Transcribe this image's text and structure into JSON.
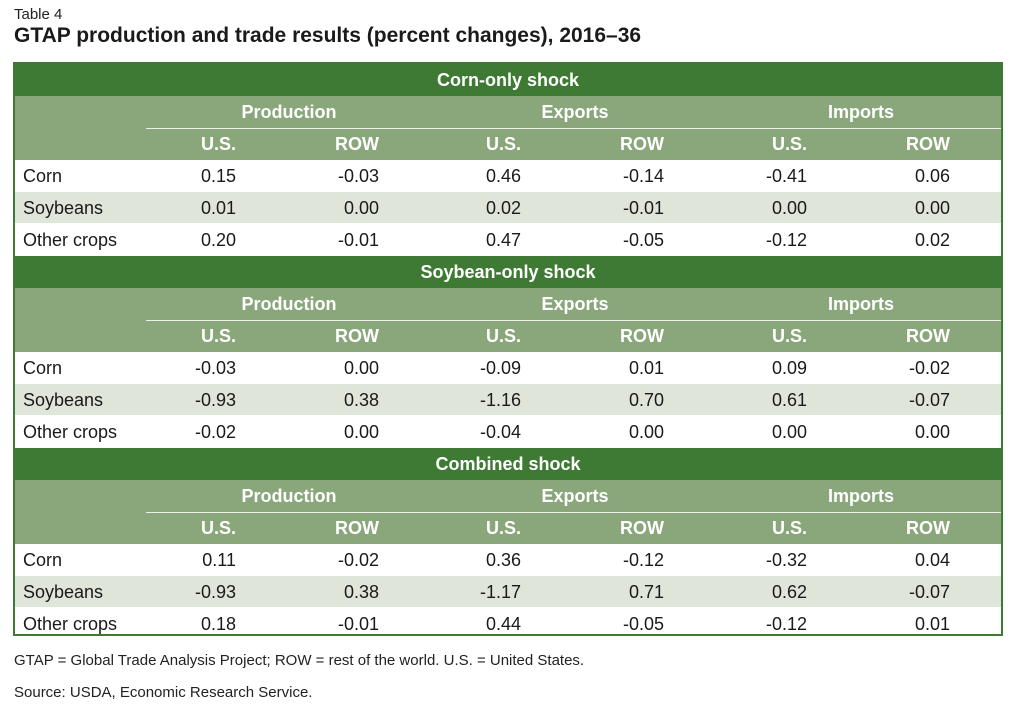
{
  "header": {
    "label": "Table 4",
    "title": "GTAP production and trade results (percent changes), 2016–36"
  },
  "column_groups": [
    "Production",
    "Exports",
    "Imports"
  ],
  "sub_columns": [
    "U.S.",
    "ROW",
    "U.S.",
    "ROW",
    "U.S.",
    "ROW"
  ],
  "sections": [
    {
      "title": "Corn-only shock",
      "rows": [
        {
          "label": "Corn",
          "values": [
            "0.15",
            "-0.03",
            "0.46",
            "-0.14",
            "-0.41",
            "0.06"
          ]
        },
        {
          "label": "Soybeans",
          "values": [
            "0.01",
            "0.00",
            "0.02",
            "-0.01",
            "0.00",
            "0.00"
          ]
        },
        {
          "label": "Other crops",
          "values": [
            "0.20",
            "-0.01",
            "0.47",
            "-0.05",
            "-0.12",
            "0.02"
          ]
        }
      ]
    },
    {
      "title": "Soybean-only shock",
      "rows": [
        {
          "label": "Corn",
          "values": [
            "-0.03",
            "0.00",
            "-0.09",
            "0.01",
            "0.09",
            "-0.02"
          ]
        },
        {
          "label": "Soybeans",
          "values": [
            "-0.93",
            "0.38",
            "-1.16",
            "0.70",
            "0.61",
            "-0.07"
          ]
        },
        {
          "label": "Other crops",
          "values": [
            "-0.02",
            "0.00",
            "-0.04",
            "0.00",
            "0.00",
            "0.00"
          ]
        }
      ]
    },
    {
      "title": "Combined shock",
      "rows": [
        {
          "label": "Corn",
          "values": [
            "0.11",
            "-0.02",
            "0.36",
            "-0.12",
            "-0.32",
            "0.04"
          ]
        },
        {
          "label": "Soybeans",
          "values": [
            "-0.93",
            "0.38",
            "-1.17",
            "0.71",
            "0.62",
            "-0.07"
          ]
        },
        {
          "label": "Other crops",
          "values": [
            "0.18",
            "-0.01",
            "0.44",
            "-0.05",
            "-0.12",
            "0.01"
          ]
        }
      ]
    }
  ],
  "footer": {
    "note": "GTAP = Global Trade Analysis Project; ROW = rest of the world. U.S. = United States.",
    "source": "Source: USDA, Economic Research Service."
  }
}
